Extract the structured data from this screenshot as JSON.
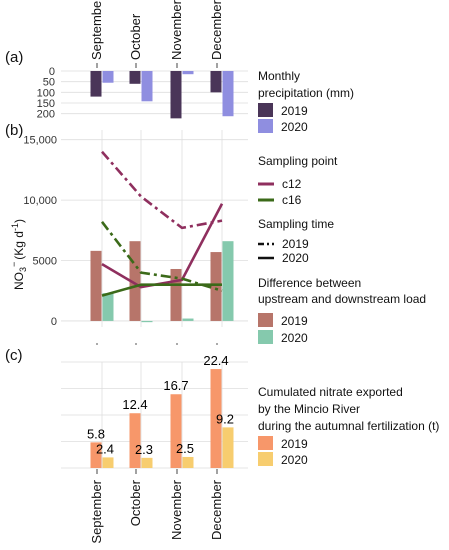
{
  "panels": {
    "a": "(a)",
    "b": "(b)",
    "c": "(c)"
  },
  "months": [
    "September",
    "October",
    "November",
    "December"
  ],
  "chart_data": [
    {
      "panel": "(a)",
      "type": "bar",
      "orientation": "downward",
      "categories": [
        "September",
        "October",
        "November",
        "December"
      ],
      "series": [
        {
          "name": "2019",
          "values": [
            120,
            60,
            222,
            100
          ],
          "color": "#4a3558"
        },
        {
          "name": "2020",
          "values": [
            55,
            142,
            15,
            212
          ],
          "color": "#8f8ee0"
        }
      ],
      "yticks": [
        "0",
        "50",
        "100",
        "150",
        "200"
      ],
      "ylim": [
        0,
        225
      ],
      "legend_title": "Monthly precipitation (mm)",
      "legend_lines": [
        "Monthly",
        "precipitation (mm)"
      ],
      "grid": true
    },
    {
      "panel": "(b)",
      "type": "bar+line",
      "categories": [
        "September",
        "October",
        "November",
        "December"
      ],
      "ylabel": "NO3 (Kg d-1)",
      "ylabel_parts": {
        "main": "NO",
        "sub": "3",
        "sup": "−",
        "unit": "(Kg d",
        "unit_sup": "-1",
        "close": ")"
      },
      "yticks": [
        "0",
        "5000",
        "10,000",
        "15,000"
      ],
      "ytick_values": [
        0,
        5000,
        10000,
        15000
      ],
      "ylim": [
        -500,
        15800
      ],
      "bar_legend_title": "Difference between upstream and downstream load",
      "bar_legend_lines": [
        "Difference between",
        "upstream and downstream load"
      ],
      "bars": [
        {
          "name": "2019",
          "values": [
            5800,
            6600,
            4300,
            5700
          ],
          "color": "#b7756a"
        },
        {
          "name": "2020",
          "values": [
            2300,
            -100,
            200,
            6600
          ],
          "color": "#85c9ad"
        }
      ],
      "sampling_point_title": "Sampling point",
      "sampling_time_title": "Sampling time",
      "lines": [
        {
          "name": "c12",
          "time": "2019",
          "values": [
            14000,
            10300,
            7700,
            8300
          ],
          "color": "#8f2f5e",
          "dash": "dashdot"
        },
        {
          "name": "c12",
          "time": "2020",
          "values": [
            4700,
            2800,
            3400,
            9700
          ],
          "color": "#8f2f5e",
          "dash": "solid"
        },
        {
          "name": "c16",
          "time": "2019",
          "values": [
            8200,
            4000,
            3500,
            2500
          ],
          "color": "#3b6a19",
          "dash": "dashdot"
        },
        {
          "name": "c16",
          "time": "2020",
          "values": [
            2100,
            3000,
            3000,
            3000
          ],
          "color": "#3b6a19",
          "dash": "solid"
        }
      ],
      "point_legend": [
        "c12",
        "c16"
      ],
      "time_legend": [
        "2019",
        "2020"
      ],
      "grid": true
    },
    {
      "panel": "(c)",
      "type": "bar",
      "categories": [
        "September",
        "October",
        "November",
        "December"
      ],
      "series": [
        {
          "name": "2019",
          "values": [
            5.8,
            12.4,
            16.7,
            22.4
          ],
          "labels": [
            "5.8",
            "12.4",
            "16.7",
            "22.4"
          ],
          "color": "#f7976a"
        },
        {
          "name": "2020",
          "values": [
            2.4,
            2.3,
            2.5,
            9.2
          ],
          "labels": [
            "2.4",
            "2.3",
            "2.5",
            "9.2"
          ],
          "color": "#f7cd6f"
        }
      ],
      "ylim": [
        0,
        24
      ],
      "legend_title": "Cumulated nitrate exported by the Mincio River during the autumnal fertilization (t)",
      "legend_lines": [
        "Cumulated nitrate exported",
        "by the Mincio River",
        "during the autumnal fertilization (t)"
      ],
      "grid": true
    }
  ]
}
